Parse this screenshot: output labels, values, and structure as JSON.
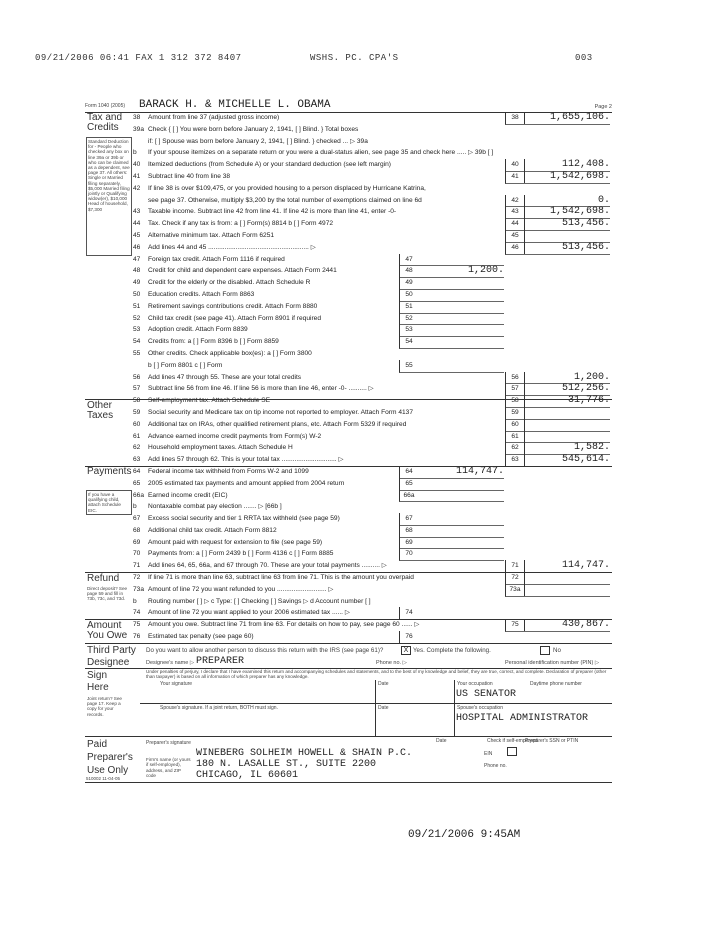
{
  "fax_header": {
    "datetime": "09/21/2006 06:41 FAX 1 312 372 8407",
    "sender": "WSHS. PC. CPA'S",
    "page": "003"
  },
  "form": {
    "form_id": "Form 1040 (2005)",
    "page_label": "Page 2",
    "taxpayer_name": "BARACK H. & MICHELLE L. OBAMA"
  },
  "sections": {
    "tax_credits": "Tax and Credits",
    "other_taxes": "Other Taxes",
    "payments": "Payments",
    "refund": "Refund",
    "amount_owe": "Amount You Owe",
    "third_party": "Third Party Designee",
    "sign": "Sign Here",
    "paid": "Paid Preparer's Use Only"
  },
  "notes": {
    "standard_deduction": "Standard Deduction for - People who checked any box on line 39a or 39b or who can be claimed as a dependent, see page 37. All others: Single or Married filing separately, $5,000 Married filing jointly or Qualifying widow(er), $10,000 Head of household, $7,300",
    "eic": "If you have a qualifying child, attach Schedule EIC.",
    "direct_deposit": "Direct deposit? See page 59 and fill in 73b, 73c, and 73d.",
    "joint": "Joint return? See page 17. Keep a copy for your records.",
    "code": "510002 11-04-05"
  },
  "rows": [
    {
      "n": "38",
      "t": "Amount from line 37 (adjusted gross income)",
      "rb": "38",
      "ra": "1,655,106."
    },
    {
      "n": "39a",
      "t": "Check  { [ ] You were born before January 2, 1941,   [ ] Blind.  }  Total boxes"
    },
    {
      "n": "",
      "t": "   if:      [ ] Spouse was born before January 2, 1941,   [ ] Blind.  }  checked ... ▷ 39a"
    },
    {
      "n": "b",
      "t": "If your spouse itemizes on a separate return or you were a dual-status alien, see page 35 and check here ..... ▷ 39b [ ]"
    },
    {
      "n": "40",
      "t": "Itemized deductions (from Schedule A) or your standard deduction (see left margin)",
      "rb": "40",
      "ra": "112,408."
    },
    {
      "n": "41",
      "t": "Subtract line 40 from line 38",
      "rb": "41",
      "ra": "1,542,698."
    },
    {
      "n": "42",
      "t": "If line 38 is over $109,475, or you provided housing to a person displaced by Hurricane Katrina,"
    },
    {
      "n": "",
      "t": "see page 37. Otherwise, multiply $3,200 by the total number of exemptions claimed on line 6d",
      "rb": "42",
      "ra": "0."
    },
    {
      "n": "43",
      "t": "Taxable income. Subtract line 42 from line 41. If line 42 is more than line 41, enter -0-",
      "rb": "43",
      "ra": "1,542,698."
    },
    {
      "n": "44",
      "t": "Tax. Check if any tax is from: a [ ] Form(s) 8814  b [ ] Form 4972",
      "rb": "44",
      "ra": "513,456."
    },
    {
      "n": "45",
      "t": "Alternative minimum tax. Attach Form 6251",
      "rb": "45",
      "ra": ""
    },
    {
      "n": "46",
      "t": "Add lines 44 and 45  .......................................................  ▷",
      "rb": "46",
      "ra": "513,456."
    },
    {
      "n": "47",
      "t": "Foreign tax credit. Attach Form 1116 if required",
      "mb": "47",
      "ma": ""
    },
    {
      "n": "48",
      "t": "Credit for child and dependent care expenses. Attach Form 2441",
      "mb": "48",
      "ma": "1,200."
    },
    {
      "n": "49",
      "t": "Credit for the elderly or the disabled. Attach Schedule R",
      "mb": "49",
      "ma": ""
    },
    {
      "n": "50",
      "t": "Education credits. Attach Form 8863",
      "mb": "50",
      "ma": ""
    },
    {
      "n": "51",
      "t": "Retirement savings contributions credit. Attach Form 8880",
      "mb": "51",
      "ma": ""
    },
    {
      "n": "52",
      "t": "Child tax credit (see page 41). Attach Form 8901 if required",
      "mb": "52",
      "ma": ""
    },
    {
      "n": "53",
      "t": "Adoption credit. Attach Form 8839",
      "mb": "53",
      "ma": ""
    },
    {
      "n": "54",
      "t": "Credits from:      a [ ] Form 8396     b [ ] Form 8859",
      "mb": "54",
      "ma": ""
    },
    {
      "n": "55",
      "t": "Other credits. Check applicable box(es):     a [ ] Form 3800"
    },
    {
      "n": "",
      "t": "   b [ ] Form 8801    c [ ] Form",
      "mb": "55",
      "ma": ""
    },
    {
      "n": "56",
      "t": "Add lines 47 through 55. These are your total credits",
      "rb": "56",
      "ra": "1,200."
    },
    {
      "n": "57",
      "t": "Subtract line 56 from line 46. If line 56 is more than line 46, enter -0-  ..........  ▷",
      "rb": "57",
      "ra": "512,256."
    },
    {
      "n": "58",
      "t": "Self-employment tax. Attach Schedule SE",
      "rb": "58",
      "ra": "31,776."
    },
    {
      "n": "59",
      "t": "Social security and Medicare tax on tip income not reported to employer. Attach Form 4137",
      "rb": "59",
      "ra": ""
    },
    {
      "n": "60",
      "t": "Additional tax on IRAs, other qualified retirement plans, etc. Attach Form 5329 if required",
      "rb": "60",
      "ra": ""
    },
    {
      "n": "61",
      "t": "Advance earned income credit payments from Form(s) W-2",
      "rb": "61",
      "ra": ""
    },
    {
      "n": "62",
      "t": "Household employment taxes. Attach Schedule H",
      "rb": "62",
      "ra": "1,582."
    },
    {
      "n": "63",
      "t": "Add lines 57 through 62. This is your total tax  ..............................  ▷",
      "rb": "63",
      "ra": "545,614."
    },
    {
      "n": "64",
      "t": "Federal income tax withheld from Forms W-2 and 1099",
      "mb": "64",
      "ma": "114,747."
    },
    {
      "n": "65",
      "t": "2005 estimated tax payments and amount applied from 2004 return",
      "mb": "65",
      "ma": ""
    },
    {
      "n": "66a",
      "t": "Earned income credit (EIC)",
      "mb": "66a",
      "ma": ""
    },
    {
      "n": "b",
      "t": "Nontaxable combat pay election  .......  ▷ [66b        ]"
    },
    {
      "n": "67",
      "t": "Excess social security and tier 1 RRTA tax withheld (see page 59)",
      "mb": "67",
      "ma": ""
    },
    {
      "n": "68",
      "t": "Additional child tax credit. Attach Form 8812",
      "mb": "68",
      "ma": ""
    },
    {
      "n": "69",
      "t": "Amount paid with request for extension to file (see page 59)",
      "mb": "69",
      "ma": ""
    },
    {
      "n": "70",
      "t": "Payments from:   a [ ] Form 2439   b [ ] Form 4136   c [ ] Form 8885",
      "mb": "70",
      "ma": ""
    },
    {
      "n": "71",
      "t": "Add lines 64, 65, 66a, and 67 through 70. These are your total payments  ..........  ▷",
      "rb": "71",
      "ra": "114,747."
    },
    {
      "n": "72",
      "t": "If line 71 is more than line 63, subtract line 63 from line 71. This is the amount you overpaid",
      "rb": "72",
      "ra": ""
    },
    {
      "n": "73a",
      "t": "Amount of line 72 you want refunded to you  ...........................  ▷",
      "rb": "73a",
      "ra": ""
    },
    {
      "n": "b",
      "t": "Routing number [                    ] ▷ c Type: [ ] Checking [ ] Savings ▷ d Account number [            ]"
    },
    {
      "n": "74",
      "t": "Amount of line 72 you want applied to your 2006 estimated tax  ......  ▷",
      "mb": "74",
      "ma": ""
    },
    {
      "n": "75",
      "t": "Amount you owe. Subtract line 71 from line 63. For details on how to pay, see page 60  ......  ▷",
      "rb": "75",
      "ra": "430,867."
    },
    {
      "n": "76",
      "t": "Estimated tax penalty (see page 60)",
      "mb": "76",
      "ma": ""
    }
  ],
  "third_party": {
    "question": "Do you want to allow another person to discuss this return with the IRS (see page 61)?",
    "yes_label": "Yes. Complete the following.",
    "yes_checked": true,
    "no_label": "No",
    "designee_label": "Designee's name ▷",
    "designee_name": "PREPARER",
    "phone_label": "Phone no. ▷",
    "pin_label": "Personal identification number (PIN) ▷"
  },
  "sign": {
    "declaration": "Under penalties of perjury, I declare that I have examined this return and accompanying schedules and statements, and to the best of my knowledge and belief, they are true, correct, and complete. Declaration of preparer (other than taxpayer) is based on all information of which preparer has any knowledge.",
    "your_signature": "Your signature",
    "date": "Date",
    "your_occupation": "Your occupation",
    "your_occupation_value": "US SENATOR",
    "daytime_phone": "Daytime phone number",
    "spouse_signature": "Spouse's signature. If a joint return, BOTH must sign.",
    "spouse_date": "Date",
    "spouse_occupation": "Spouse's occupation",
    "spouse_occupation_value": "HOSPITAL ADMINISTRATOR"
  },
  "preparer": {
    "signature_label": "Preparer's signature",
    "date_label": "Date",
    "self_employed_label": "Check if self-employed",
    "ssn_label": "Preparer's SSN or PTIN",
    "firm_label": "Firm's name (or yours if self-employed), address, and ZIP code",
    "firm_name": "WINEBERG SOLHEIM HOWELL & SHAIN P.C.",
    "firm_address": "180 N. LASALLE ST., SUITE 2200",
    "firm_city": "CHICAGO, IL 60601",
    "ein_label": "EIN",
    "phone_label": "Phone no."
  },
  "footer": {
    "timestamp": "09/21/2006  9:45AM"
  }
}
